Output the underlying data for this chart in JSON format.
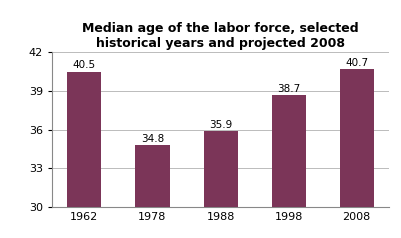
{
  "categories": [
    "1962",
    "1978",
    "1988",
    "1998",
    "2008"
  ],
  "values": [
    40.5,
    34.8,
    35.9,
    38.7,
    40.7
  ],
  "bar_color": "#7B3558",
  "title_line1": "Median age of the labor force, selected",
  "title_line2": "historical years and projected 2008",
  "ylim": [
    30,
    42
  ],
  "yticks": [
    30,
    33,
    36,
    39,
    42
  ],
  "ylabel": "",
  "xlabel": "",
  "bar_width": 0.5,
  "title_fontsize": 9,
  "label_fontsize": 7.5,
  "tick_fontsize": 8,
  "background_color": "#ffffff",
  "grid_color": "#bbbbbb"
}
